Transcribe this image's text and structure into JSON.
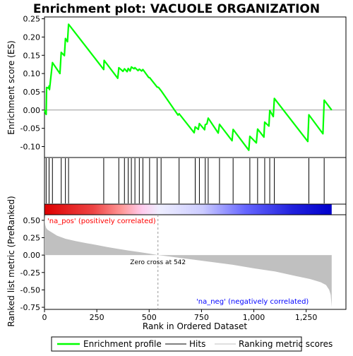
{
  "chart_data": {
    "type": "line",
    "title": "Enrichment plot: VACUOLE ORGANIZATION",
    "xlabel": "Rank in Ordered Dataset",
    "ylabel_top": "Enrichment score (ES)",
    "ylabel_bottom": "Ranked list metric (PreRanked)",
    "x_ticks": [
      0,
      250,
      500,
      750,
      1000,
      1250
    ],
    "x_range": [
      0,
      1440
    ],
    "es_y_ticks": [
      -0.1,
      -0.05,
      0.0,
      0.05,
      0.1,
      0.15,
      0.2,
      0.25
    ],
    "es_y_tick_labels": [
      "-0.10",
      "-0.05",
      "0.00",
      "0.05",
      "0.10",
      "0.15",
      "0.20",
      "0.25"
    ],
    "es_y_range": [
      -0.13,
      0.255
    ],
    "metric_y_ticks": [
      -0.75,
      -0.5,
      -0.25,
      0.0,
      0.25,
      0.5
    ],
    "metric_y_tick_labels": [
      "-0.75",
      "-0.50",
      "-0.25",
      "0.00",
      "0.25",
      "0.50"
    ],
    "metric_y_range": [
      -0.78,
      0.58
    ],
    "n_genes": 1372,
    "zero_cross": 542,
    "annotations": {
      "zero_cross": "Zero cross at 542",
      "pos": "'na_pos' (positively correlated)",
      "neg": "'na_neg' (negatively correlated)"
    },
    "hits": [
      8,
      22,
      38,
      80,
      100,
      115,
      283,
      355,
      382,
      400,
      415,
      432,
      453,
      470,
      502,
      538,
      557,
      643,
      720,
      740,
      768,
      782,
      836,
      901,
      981,
      1018,
      1052,
      1076,
      1098,
      1263,
      1336
    ],
    "es_points": [
      [
        0,
        0.0
      ],
      [
        8,
        -0.012
      ],
      [
        10,
        0.062
      ],
      [
        20,
        0.06
      ],
      [
        22,
        0.066
      ],
      [
        24,
        0.056
      ],
      [
        38,
        0.13
      ],
      [
        74,
        0.1
      ],
      [
        80,
        0.158
      ],
      [
        95,
        0.149
      ],
      [
        100,
        0.196
      ],
      [
        110,
        0.187
      ],
      [
        115,
        0.235
      ],
      [
        283,
        0.111
      ],
      [
        285,
        0.136
      ],
      [
        350,
        0.087
      ],
      [
        355,
        0.116
      ],
      [
        375,
        0.106
      ],
      [
        382,
        0.113
      ],
      [
        395,
        0.105
      ],
      [
        400,
        0.114
      ],
      [
        409,
        0.107
      ],
      [
        415,
        0.118
      ],
      [
        428,
        0.113
      ],
      [
        432,
        0.116
      ],
      [
        447,
        0.108
      ],
      [
        453,
        0.112
      ],
      [
        464,
        0.107
      ],
      [
        470,
        0.111
      ],
      [
        498,
        0.089
      ],
      [
        502,
        0.089
      ],
      [
        538,
        0.063
      ],
      [
        545,
        0.062
      ],
      [
        557,
        0.053
      ],
      [
        638,
        -0.014
      ],
      [
        643,
        -0.01
      ],
      [
        715,
        -0.062
      ],
      [
        720,
        -0.046
      ],
      [
        735,
        -0.053
      ],
      [
        740,
        -0.037
      ],
      [
        765,
        -0.054
      ],
      [
        768,
        -0.04
      ],
      [
        776,
        -0.038
      ],
      [
        782,
        -0.022
      ],
      [
        830,
        -0.063
      ],
      [
        836,
        -0.039
      ],
      [
        896,
        -0.084
      ],
      [
        901,
        -0.053
      ],
      [
        976,
        -0.11
      ],
      [
        981,
        -0.072
      ],
      [
        1012,
        -0.09
      ],
      [
        1018,
        -0.052
      ],
      [
        1048,
        -0.074
      ],
      [
        1052,
        -0.033
      ],
      [
        1072,
        -0.044
      ],
      [
        1076,
        -0.001
      ],
      [
        1093,
        -0.018
      ],
      [
        1098,
        0.032
      ],
      [
        1258,
        -0.086
      ],
      [
        1263,
        -0.013
      ],
      [
        1330,
        -0.065
      ],
      [
        1336,
        0.027
      ],
      [
        1372,
        0.0
      ]
    ],
    "metric_points": [
      [
        0,
        0.56
      ],
      [
        2,
        0.47
      ],
      [
        4,
        0.43
      ],
      [
        8,
        0.39
      ],
      [
        15,
        0.365
      ],
      [
        30,
        0.335
      ],
      [
        60,
        0.28
      ],
      [
        100,
        0.235
      ],
      [
        150,
        0.2
      ],
      [
        200,
        0.172
      ],
      [
        250,
        0.145
      ],
      [
        300,
        0.115
      ],
      [
        350,
        0.09
      ],
      [
        400,
        0.066
      ],
      [
        450,
        0.045
      ],
      [
        500,
        0.022
      ],
      [
        542,
        0.0
      ],
      [
        600,
        -0.022
      ],
      [
        700,
        -0.06
      ],
      [
        800,
        -0.1
      ],
      [
        900,
        -0.14
      ],
      [
        1000,
        -0.19
      ],
      [
        1100,
        -0.235
      ],
      [
        1200,
        -0.3
      ],
      [
        1270,
        -0.345
      ],
      [
        1320,
        -0.39
      ],
      [
        1345,
        -0.43
      ],
      [
        1360,
        -0.5
      ],
      [
        1367,
        -0.57
      ],
      [
        1372,
        -0.75
      ]
    ],
    "legend": [
      {
        "label": "Enrichment profile",
        "color": "#00ff00"
      },
      {
        "label": "Hits",
        "color": "#000000"
      },
      {
        "label": "Ranking metric scores",
        "color": "#c0c0c0"
      }
    ],
    "colors": {
      "profile": "#00ff00",
      "metric_fill": "#c0c0c0",
      "pos_text": "#ff0000",
      "neg_text": "#0000ff",
      "zero_line": "#999999",
      "hit": "#000000"
    }
  }
}
